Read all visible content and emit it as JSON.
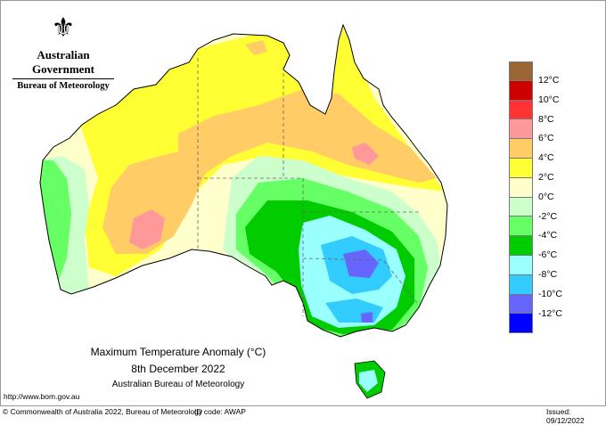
{
  "header": {
    "government": "Australian Government",
    "bureau": "Bureau of Meteorology",
    "logo_icon": "coat-of-arms-icon"
  },
  "map": {
    "title": "Maximum Temperature Anomaly (°C)",
    "date": "8th December 2022",
    "source": "Australian Bureau of Meteorology"
  },
  "legend": {
    "colors": [
      "#996633",
      "#cc0000",
      "#ff3333",
      "#ff9999",
      "#ffcc66",
      "#ffff33",
      "#ffffcc",
      "#ccffcc",
      "#66ff66",
      "#00cc00",
      "#99ffff",
      "#33ccff",
      "#6666ff",
      "#0000ff"
    ],
    "labels": [
      "12°C",
      "10°C",
      "8°C",
      "6°C",
      "4°C",
      "2°C",
      "0°C",
      "-2°C",
      "-4°C",
      "-6°C",
      "-8°C",
      "-10°C",
      "-12°C"
    ]
  },
  "footer": {
    "url": "http://www.bom.gov.au",
    "copyright": "© Commonwealth of Australia 2022, Bureau of Meteorology",
    "id_code": "ID code: AWAP",
    "issued": "Issued: 09/12/2022"
  }
}
